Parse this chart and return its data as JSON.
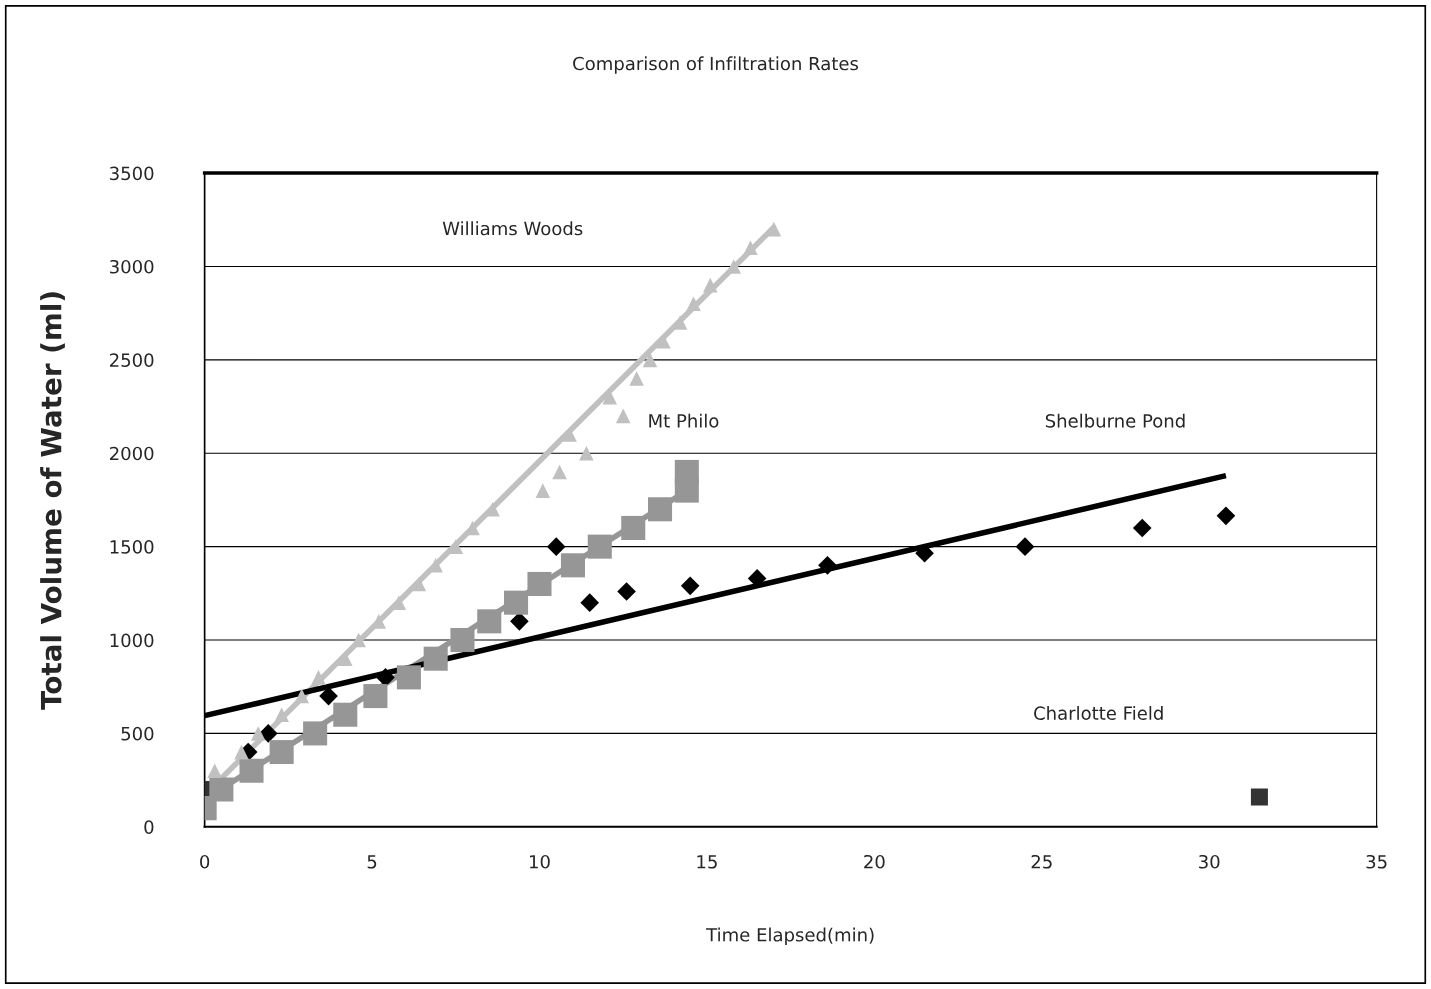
{
  "chart_data": {
    "type": "scatter",
    "title": "Comparison of Infiltration Rates",
    "xlabel": "Time Elapsed(min)",
    "ylabel": "Total Volume of Water (ml)",
    "xlim": [
      0,
      35
    ],
    "xticks": [
      0,
      5,
      10,
      15,
      20,
      25,
      30,
      35
    ],
    "ylim": [
      0,
      3500
    ],
    "yticks": [
      0,
      500,
      1000,
      1500,
      2000,
      2500,
      3000,
      3500
    ],
    "grid": "y",
    "legend": false,
    "annotations": [
      "Williams Woods",
      "Mt Philo",
      "Shelburne Pond",
      "Charlotte Field"
    ],
    "series": [
      {
        "color": "#c0c0c0",
        "marker": "triangle",
        "x": [
          0.3,
          1.1,
          1.6,
          2.3,
          2.9,
          3.4,
          4.2,
          4.6,
          5.2,
          5.8,
          6.4,
          6.9,
          7.5,
          8.0,
          8.6,
          10.1,
          10.6,
          11.4,
          10.9,
          12.5,
          12.1,
          12.9,
          13.3,
          13.7,
          14.2,
          14.6,
          15.1,
          15.8,
          16.3,
          17.0
        ],
        "values": [
          300,
          400,
          500,
          600,
          700,
          800,
          900,
          1000,
          1100,
          1200,
          1300,
          1400,
          1500,
          1600,
          1700,
          1800,
          1900,
          2000,
          2100,
          2200,
          2300,
          2400,
          2500,
          2600,
          2700,
          2800,
          2900,
          3000,
          3100,
          3200
        ]
      },
      {
        "type": "line",
        "color": "#c0c0c0",
        "marker": "none",
        "x": [
          0,
          17.0
        ],
        "values": [
          170,
          3210
        ]
      },
      {
        "color": "#969696",
        "marker": "square",
        "x": [
          0,
          0.5,
          1.4,
          2.3,
          3.3,
          4.2,
          5.1,
          6.1,
          6.9,
          7.7,
          8.5,
          9.3,
          10.0,
          11.0,
          11.8,
          12.8,
          13.6,
          14.4,
          14.4
        ],
        "values": [
          100,
          200,
          300,
          400,
          500,
          600,
          700,
          800,
          900,
          1000,
          1100,
          1200,
          1300,
          1400,
          1500,
          1600,
          1700,
          1800,
          1900
        ]
      },
      {
        "type": "line",
        "color": "#969696",
        "marker": "none",
        "x": [
          0,
          14.4
        ],
        "values": [
          145,
          1800
        ]
      },
      {
        "color": "#000000",
        "marker": "diamond",
        "x": [
          1.3,
          1.9,
          3.7,
          5.4,
          9.4,
          10.5,
          11.5,
          12.6,
          14.5,
          16.5,
          18.6,
          21.5,
          24.5,
          28.0,
          30.5
        ],
        "values": [
          400,
          500,
          700,
          800,
          1100,
          1500,
          1200,
          1260,
          1290,
          1330,
          1400,
          1465,
          1500,
          1600,
          1665
        ]
      },
      {
        "type": "line",
        "color": "#000000",
        "marker": "none",
        "x": [
          0,
          30.5
        ],
        "values": [
          595,
          1880
        ]
      },
      {
        "color": "#333333",
        "marker": "square",
        "x": [
          0,
          31.5
        ],
        "values": [
          200,
          160
        ]
      }
    ]
  }
}
